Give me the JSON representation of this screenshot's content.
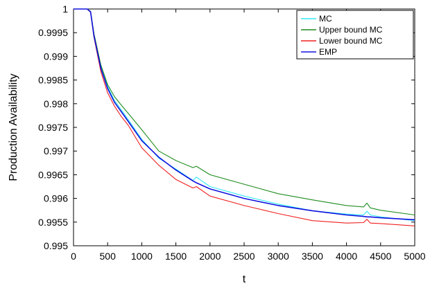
{
  "chart_data": {
    "type": "line",
    "title": "",
    "xlabel": "t",
    "ylabel": "Production Availability",
    "xlim": [
      0,
      5000
    ],
    "ylim": [
      0.995,
      1.0
    ],
    "xticks": [
      0,
      500,
      1000,
      1500,
      2000,
      2500,
      3000,
      3500,
      4000,
      4500,
      5000
    ],
    "xtick_labels": [
      "0",
      "500",
      "1000",
      "1500",
      "2000",
      "2500",
      "3000",
      "3500",
      "4000",
      "4500",
      "5000"
    ],
    "yticks": [
      0.995,
      0.9955,
      0.996,
      0.9965,
      0.997,
      0.9975,
      0.998,
      0.9985,
      0.999,
      0.9995,
      1.0
    ],
    "ytick_labels": [
      "0.995",
      "0.9955",
      "0.996",
      "0.9965",
      "0.997",
      "0.9975",
      "0.998",
      "0.9985",
      "0.999",
      "0.9995",
      "1"
    ],
    "grid": false,
    "legend_position": "top-right",
    "x": [
      0,
      200,
      250,
      300,
      400,
      500,
      600,
      700,
      800,
      1000,
      1250,
      1500,
      1750,
      1800,
      2000,
      2500,
      3000,
      3500,
      4000,
      4250,
      4300,
      4350,
      4500,
      5000
    ],
    "series": [
      {
        "name": "MC",
        "color": "#33e6f2",
        "values": [
          1.0,
          1.0,
          0.99995,
          0.99945,
          0.99878,
          0.99836,
          0.99807,
          0.99787,
          0.99767,
          0.99725,
          0.99685,
          0.99662,
          0.99638,
          0.99645,
          0.99625,
          0.99605,
          0.99588,
          0.99574,
          0.99567,
          0.99565,
          0.99573,
          0.99565,
          0.99561,
          0.99553
        ]
      },
      {
        "name": "Upper bound MC",
        "color": "#1e8c1e",
        "values": [
          1.0,
          1.0,
          0.99995,
          0.99948,
          0.99882,
          0.9984,
          0.99815,
          0.99797,
          0.9978,
          0.99745,
          0.997,
          0.9968,
          0.99665,
          0.99668,
          0.9965,
          0.9963,
          0.9961,
          0.99597,
          0.99585,
          0.99582,
          0.9959,
          0.9958,
          0.99575,
          0.99565
        ]
      },
      {
        "name": "Lower bound MC",
        "color": "#f01e1e",
        "values": [
          1.0,
          1.0,
          0.99993,
          0.9994,
          0.99868,
          0.99823,
          0.99795,
          0.99773,
          0.99755,
          0.99707,
          0.9967,
          0.9964,
          0.99622,
          0.99625,
          0.99605,
          0.99585,
          0.99568,
          0.99553,
          0.99548,
          0.99549,
          0.99556,
          0.99548,
          0.99547,
          0.99542
        ]
      },
      {
        "name": "EMP",
        "color": "#1010e0",
        "values": [
          1.0,
          1.0,
          0.99994,
          0.99943,
          0.99875,
          0.99832,
          0.99803,
          0.99783,
          0.99763,
          0.99722,
          0.99687,
          0.9966,
          0.99637,
          0.99633,
          0.9962,
          0.996,
          0.99585,
          0.99574,
          0.99565,
          0.99562,
          0.99561,
          0.99561,
          0.99559,
          0.99555
        ]
      }
    ]
  }
}
